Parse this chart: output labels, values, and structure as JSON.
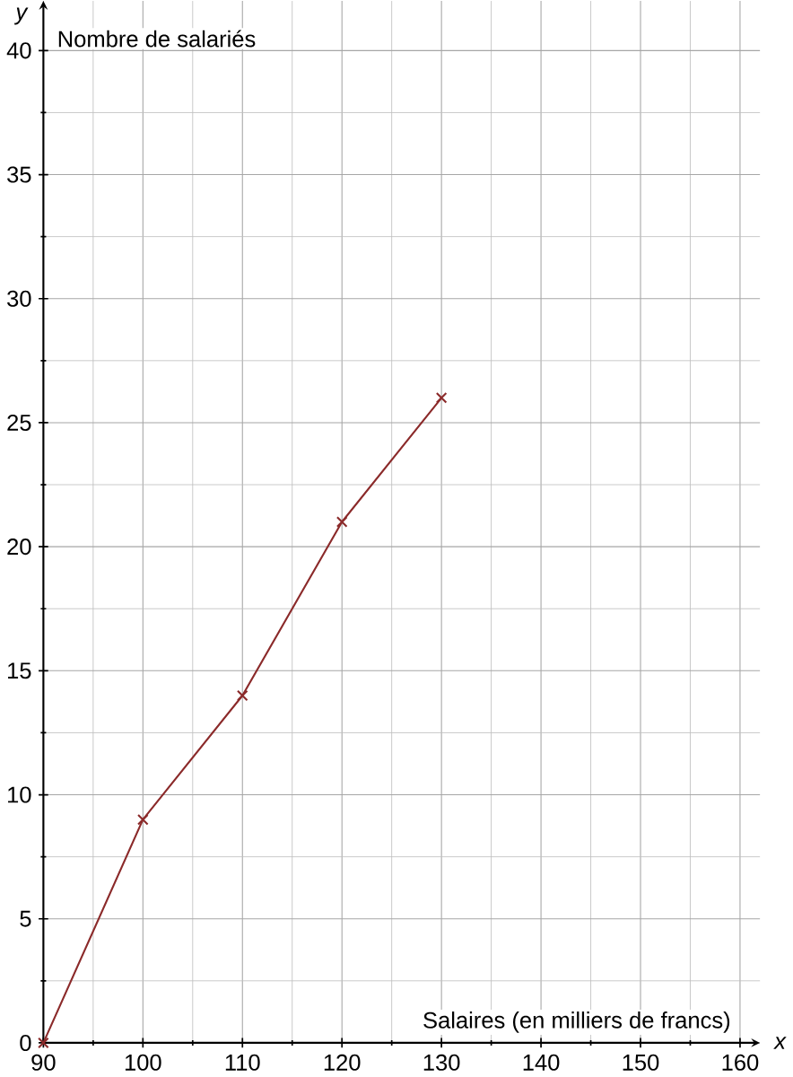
{
  "chart_data": {
    "type": "line",
    "xlabel": "Salaires (en milliers de francs)",
    "ylabel": "Nombre de salariés",
    "x": [
      90,
      100,
      110,
      120,
      130
    ],
    "series": [
      {
        "color": "#8b2a2a",
        "values": [
          0,
          9,
          14,
          21,
          26
        ]
      }
    ],
    "xlim": [
      90,
      162
    ],
    "xticks": [
      90,
      100,
      110,
      120,
      130,
      140,
      150,
      160
    ],
    "ylim": [
      0,
      42
    ],
    "yticks": [
      0,
      5,
      10,
      15,
      20,
      25,
      30,
      35,
      40
    ],
    "grid": true,
    "marker": "cross",
    "line_style": "solid",
    "annotations": [
      "x",
      "y"
    ]
  }
}
